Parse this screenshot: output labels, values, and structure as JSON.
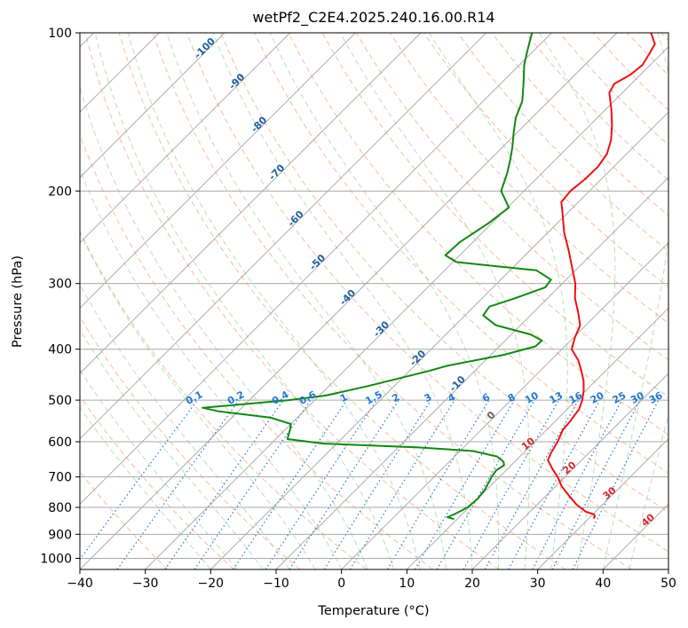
{
  "chart_data": {
    "type": "line",
    "subtype": "skew-t log-p diagram",
    "title": "wetPf2_C2E4.2025.240.16.00.R14",
    "xlabel": "Temperature (°C)",
    "ylabel": "Pressure (hPa)",
    "xlim": [
      -40,
      50
    ],
    "ylim": [
      1050,
      100
    ],
    "x_ticks": [
      -40,
      -30,
      -20,
      -10,
      0,
      10,
      20,
      30,
      40,
      50
    ],
    "y_ticks": [
      100,
      200,
      300,
      400,
      500,
      600,
      700,
      800,
      900,
      1000
    ],
    "colors": {
      "temperature": "#ee1111",
      "dewpoint": "#118811",
      "isotherm": "#999999",
      "isobar": "#aaaaaa",
      "dry_adiabat": "#f4a582",
      "moist_adiabat": "#8cc98c",
      "mixing_ratio": "#1f78d4",
      "altitude_label": "#1f5f9f",
      "theta_label": "#d62728"
    },
    "series": [
      {
        "name": "Temperature",
        "color": "#ee1111",
        "points": [
          {
            "p": 840,
            "t": 30.8
          },
          {
            "p": 832,
            "t": 30.6
          },
          {
            "p": 825,
            "t": 30.2
          },
          {
            "p": 815,
            "t": 28.5
          },
          {
            "p": 790,
            "t": 26.0
          },
          {
            "p": 760,
            "t": 23.5
          },
          {
            "p": 730,
            "t": 21.0
          },
          {
            "p": 700,
            "t": 18.9
          },
          {
            "p": 675,
            "t": 16.8
          },
          {
            "p": 650,
            "t": 14.8
          },
          {
            "p": 630,
            "t": 14.2
          },
          {
            "p": 600,
            "t": 13.5
          },
          {
            "p": 570,
            "t": 12.5
          },
          {
            "p": 550,
            "t": 12.3
          },
          {
            "p": 520,
            "t": 11.8
          },
          {
            "p": 500,
            "t": 10.9
          },
          {
            "p": 480,
            "t": 9.7
          },
          {
            "p": 460,
            "t": 8.2
          },
          {
            "p": 440,
            "t": 6.3
          },
          {
            "p": 420,
            "t": 4.2
          },
          {
            "p": 400,
            "t": 1.5
          },
          {
            "p": 380,
            "t": 0.2
          },
          {
            "p": 360,
            "t": -0.9
          },
          {
            "p": 340,
            "t": -3.2
          },
          {
            "p": 320,
            "t": -5.8
          },
          {
            "p": 300,
            "t": -8.0
          },
          {
            "p": 280,
            "t": -10.9
          },
          {
            "p": 260,
            "t": -14.0
          },
          {
            "p": 240,
            "t": -17.5
          },
          {
            "p": 220,
            "t": -20.8
          },
          {
            "p": 210,
            "t": -22.6
          },
          {
            "p": 200,
            "t": -22.9
          },
          {
            "p": 190,
            "t": -22.5
          },
          {
            "p": 180,
            "t": -22.4
          },
          {
            "p": 170,
            "t": -23.0
          },
          {
            "p": 160,
            "t": -24.5
          },
          {
            "p": 150,
            "t": -26.6
          },
          {
            "p": 140,
            "t": -29.1
          },
          {
            "p": 130,
            "t": -32.0
          },
          {
            "p": 125,
            "t": -32.6
          },
          {
            "p": 120,
            "t": -31.5
          },
          {
            "p": 115,
            "t": -31.2
          },
          {
            "p": 110,
            "t": -31.8
          },
          {
            "p": 105,
            "t": -32.5
          },
          {
            "p": 100,
            "t": -34.8
          }
        ]
      },
      {
        "name": "Dewpoint",
        "color": "#118811",
        "points": [
          {
            "p": 842,
            "t": 9.5
          },
          {
            "p": 835,
            "t": 8.2
          },
          {
            "p": 825,
            "t": 8.8
          },
          {
            "p": 800,
            "t": 9.8
          },
          {
            "p": 770,
            "t": 10.0
          },
          {
            "p": 740,
            "t": 9.7
          },
          {
            "p": 700,
            "t": 8.8
          },
          {
            "p": 680,
            "t": 8.5
          },
          {
            "p": 665,
            "t": 8.9
          },
          {
            "p": 655,
            "t": 8.3
          },
          {
            "p": 640,
            "t": 6.5
          },
          {
            "p": 625,
            "t": 2.0
          },
          {
            "p": 615,
            "t": -7.0
          },
          {
            "p": 605,
            "t": -22.0
          },
          {
            "p": 593,
            "t": -28.2
          },
          {
            "p": 580,
            "t": -28.8
          },
          {
            "p": 570,
            "t": -29.2
          },
          {
            "p": 555,
            "t": -30.0
          },
          {
            "p": 540,
            "t": -34.0
          },
          {
            "p": 525,
            "t": -43.0
          },
          {
            "p": 517,
            "t": -46.0
          },
          {
            "p": 510,
            "t": -41.0
          },
          {
            "p": 500,
            "t": -34.0
          },
          {
            "p": 490,
            "t": -29.0
          },
          {
            "p": 470,
            "t": -24.0
          },
          {
            "p": 440,
            "t": -17.0
          },
          {
            "p": 430,
            "t": -15.0
          },
          {
            "p": 410,
            "t": -8.0
          },
          {
            "p": 395,
            "t": -4.5
          },
          {
            "p": 385,
            "t": -4.4
          },
          {
            "p": 375,
            "t": -7.0
          },
          {
            "p": 360,
            "t": -13.8
          },
          {
            "p": 345,
            "t": -17.2
          },
          {
            "p": 332,
            "t": -17.6
          },
          {
            "p": 320,
            "t": -15.0
          },
          {
            "p": 305,
            "t": -12.0
          },
          {
            "p": 295,
            "t": -12.3
          },
          {
            "p": 283,
            "t": -16.0
          },
          {
            "p": 278,
            "t": -22.8
          },
          {
            "p": 273,
            "t": -29.5
          },
          {
            "p": 265,
            "t": -32.2
          },
          {
            "p": 250,
            "t": -32.0
          },
          {
            "p": 230,
            "t": -30.5
          },
          {
            "p": 215,
            "t": -29.8
          },
          {
            "p": 200,
            "t": -33.5
          },
          {
            "p": 185,
            "t": -35.3
          },
          {
            "p": 175,
            "t": -36.8
          },
          {
            "p": 165,
            "t": -38.5
          },
          {
            "p": 155,
            "t": -40.5
          },
          {
            "p": 145,
            "t": -42.5
          },
          {
            "p": 135,
            "t": -44.0
          },
          {
            "p": 125,
            "t": -46.5
          },
          {
            "p": 115,
            "t": -49.3
          },
          {
            "p": 108,
            "t": -51.0
          },
          {
            "p": 100,
            "t": -53.0
          }
        ]
      }
    ],
    "mixing_ratio_labels": [
      "0.1",
      "0.2",
      "0.4",
      "0.6",
      "1",
      "1.5",
      "2",
      "3",
      "4",
      "6",
      "8",
      "10",
      "13",
      "16",
      "20",
      "25",
      "30",
      "36"
    ],
    "mixing_ratio_values": [
      0.1,
      0.2,
      0.4,
      0.6,
      1,
      1.5,
      2,
      3,
      4,
      6,
      8,
      10,
      13,
      16,
      20,
      25,
      30,
      36
    ],
    "altitude_labels": [
      {
        "text": "-100",
        "t": -100,
        "p": 108
      },
      {
        "text": "-90",
        "t": -90,
        "p": 125
      },
      {
        "text": "-80",
        "t": -80,
        "p": 151
      },
      {
        "text": "-70",
        "t": -70,
        "p": 186
      },
      {
        "text": "-60",
        "t": -60,
        "p": 228
      },
      {
        "text": "-50",
        "t": -50,
        "p": 276
      },
      {
        "text": "-40",
        "t": -40,
        "p": 322
      },
      {
        "text": "-30",
        "t": -30,
        "p": 370
      },
      {
        "text": "-20",
        "t": -20,
        "p": 420
      },
      {
        "text": "-10",
        "t": -10,
        "p": 470
      },
      {
        "text": "0",
        "t": 0,
        "p": 540
      }
    ],
    "theta_labels": [
      {
        "text": "10",
        "t": 10,
        "p": 612
      },
      {
        "text": "20",
        "t": 20,
        "p": 680
      },
      {
        "text": "30",
        "t": 30,
        "p": 760
      },
      {
        "text": "40",
        "t": 40,
        "p": 855
      }
    ]
  }
}
